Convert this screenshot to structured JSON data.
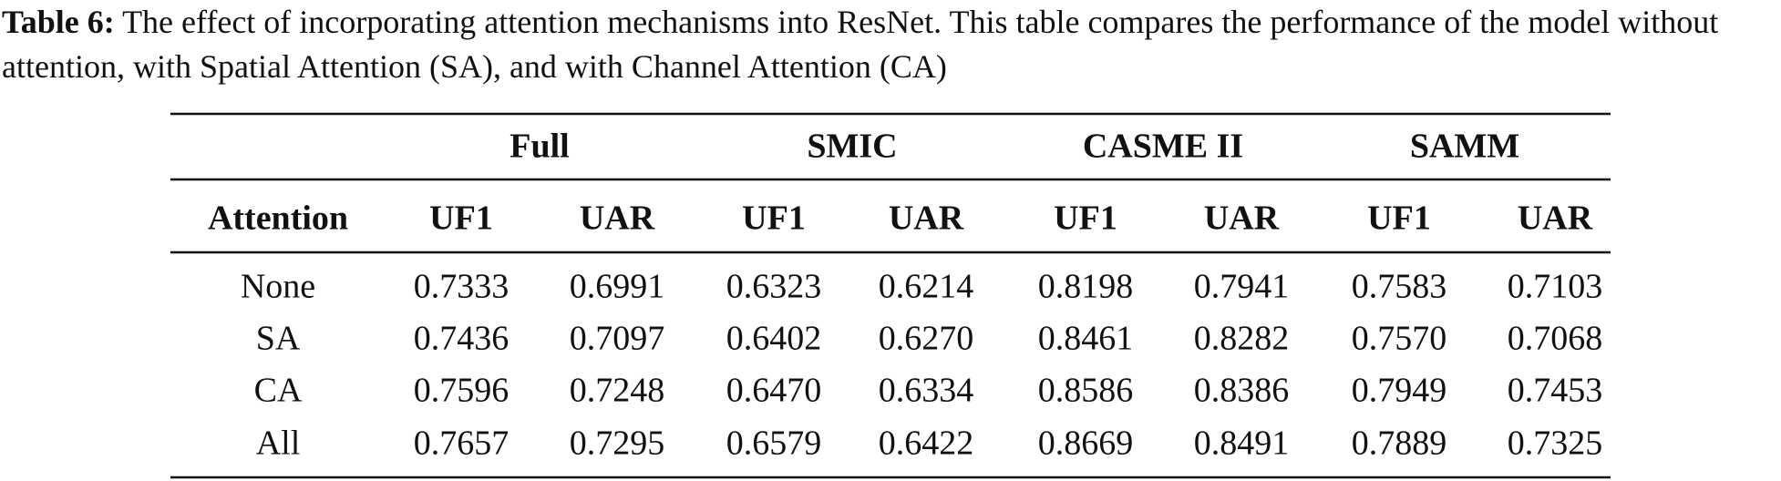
{
  "caption": {
    "label": "Table 6:",
    "text": "The effect of incorporating attention mechanisms into ResNet. This table compares the performance of the model without attention, with Spatial Attention (SA), and with Channel Attention (CA)"
  },
  "table": {
    "groups": [
      "Full",
      "SMIC",
      "CASME II",
      "SAMM"
    ],
    "columns": [
      "Attention",
      "UF1",
      "UAR",
      "UF1",
      "UAR",
      "UF1",
      "UAR",
      "UF1",
      "UAR"
    ],
    "rows": [
      [
        "None",
        "0.7333",
        "0.6991",
        "0.6323",
        "0.6214",
        "0.8198",
        "0.7941",
        "0.7583",
        "0.7103"
      ],
      [
        "SA",
        "0.7436",
        "0.7097",
        "0.6402",
        "0.6270",
        "0.8461",
        "0.8282",
        "0.7570",
        "0.7068"
      ],
      [
        "CA",
        "0.7596",
        "0.7248",
        "0.6470",
        "0.6334",
        "0.8586",
        "0.8386",
        "0.7949",
        "0.7453"
      ],
      [
        "All",
        "0.7657",
        "0.7295",
        "0.6579",
        "0.6422",
        "0.8669",
        "0.8491",
        "0.7889",
        "0.7325"
      ]
    ]
  }
}
